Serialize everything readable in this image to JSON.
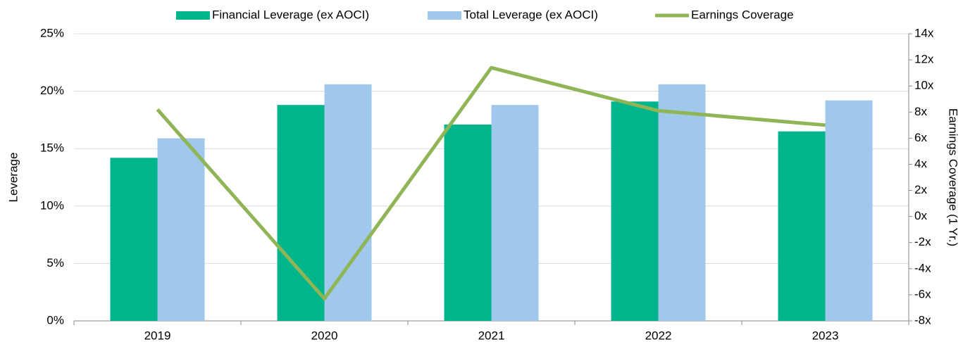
{
  "chart_data": {
    "type": "bar",
    "categories": [
      "2019",
      "2020",
      "2021",
      "2022",
      "2023"
    ],
    "series": [
      {
        "name": "Financial Leverage (ex AOCI)",
        "type": "bar",
        "color": "#00b48c",
        "values": [
          14.2,
          18.8,
          17.1,
          19.1,
          16.5
        ]
      },
      {
        "name": "Total Leverage (ex AOCI)",
        "type": "bar",
        "color": "#a0c8ea",
        "values": [
          15.9,
          20.6,
          18.8,
          20.6,
          19.2
        ]
      },
      {
        "name": "Earnings Coverage",
        "type": "line",
        "axis": "y2",
        "color": "#8fb556",
        "values": [
          8.2,
          -6.3,
          11.4,
          8.1,
          7.0
        ]
      }
    ],
    "y_label": "Leverage",
    "y2_label": "Earnings Coverage (1 Yr.)",
    "ylim": [
      0,
      25
    ],
    "yticks": [
      {
        "value": 0,
        "label": "0%"
      },
      {
        "value": 5,
        "label": "5%"
      },
      {
        "value": 10,
        "label": "10%"
      },
      {
        "value": 15,
        "label": "15%"
      },
      {
        "value": 20,
        "label": "20%"
      },
      {
        "value": 25,
        "label": "25%"
      }
    ],
    "y2lim": [
      -8,
      14
    ],
    "y2ticks": [
      {
        "value": -8,
        "label": "-8x"
      },
      {
        "value": -6,
        "label": "-6x"
      },
      {
        "value": -4,
        "label": "-4x"
      },
      {
        "value": -2,
        "label": "-2x"
      },
      {
        "value": 0,
        "label": "0x"
      },
      {
        "value": 2,
        "label": "2x"
      },
      {
        "value": 4,
        "label": "4x"
      },
      {
        "value": 6,
        "label": "6x"
      },
      {
        "value": 8,
        "label": "8x"
      },
      {
        "value": 10,
        "label": "10x"
      },
      {
        "value": 12,
        "label": "12x"
      },
      {
        "value": 14,
        "label": "14x"
      }
    ],
    "grid": true,
    "legend": "top"
  }
}
